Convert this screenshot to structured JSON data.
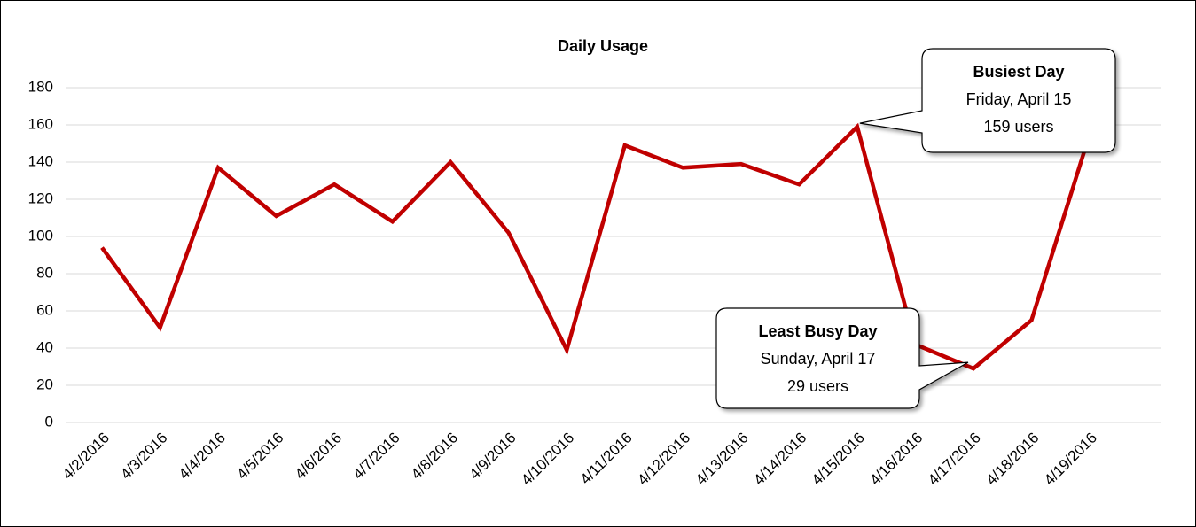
{
  "chart_data": {
    "type": "line",
    "title": "Daily Usage",
    "categories": [
      "4/2/2016",
      "4/3/2016",
      "4/4/2016",
      "4/5/2016",
      "4/6/2016",
      "4/7/2016",
      "4/8/2016",
      "4/9/2016",
      "4/10/2016",
      "4/11/2016",
      "4/12/2016",
      "4/13/2016",
      "4/14/2016",
      "4/15/2016",
      "4/16/2016",
      "4/17/2016",
      "4/18/2016",
      "4/19/2016"
    ],
    "series": [
      {
        "name": "Users",
        "color": "#c00000",
        "values": [
          94,
          51,
          137,
          111,
          128,
          108,
          140,
          102,
          39,
          149,
          137,
          139,
          128,
          159,
          42,
          29,
          55,
          155
        ]
      }
    ],
    "ylim": [
      0,
      180
    ],
    "yticks": [
      0,
      20,
      40,
      60,
      80,
      100,
      120,
      140,
      160,
      180
    ],
    "grid": true,
    "annotations": [
      {
        "lines": [
          "Busiest Day",
          "Friday, April 15",
          "159 users"
        ]
      },
      {
        "lines": [
          "Least Busy Day",
          "Sunday, April 17",
          "29 users"
        ]
      }
    ]
  }
}
